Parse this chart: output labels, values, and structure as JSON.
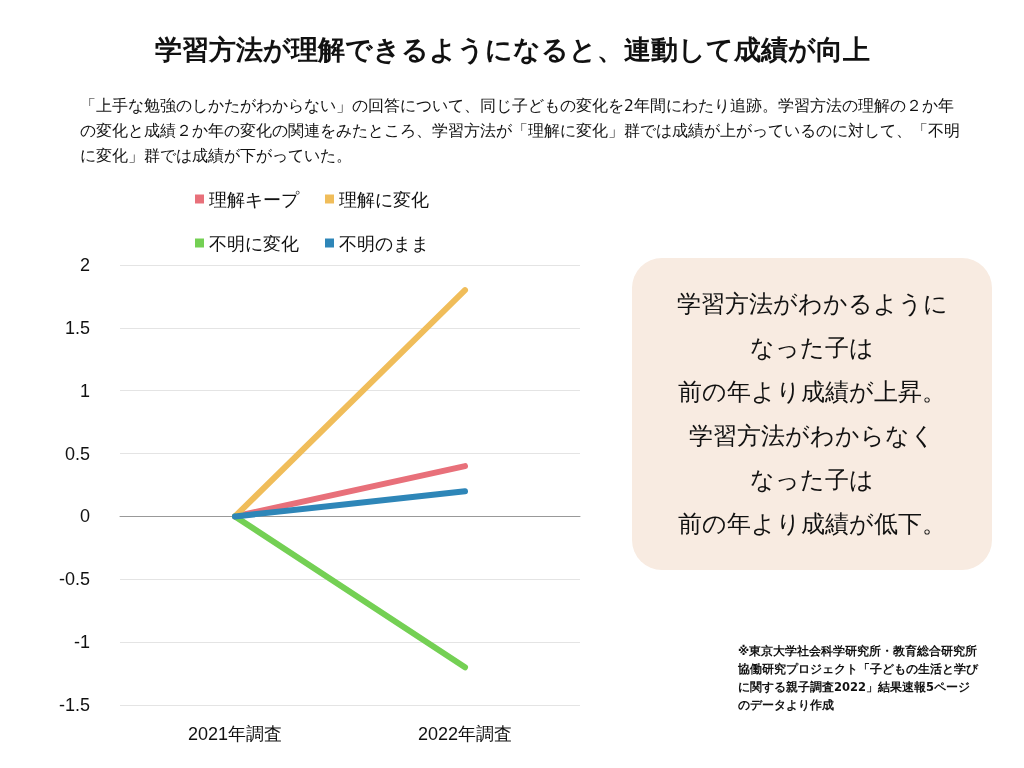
{
  "chart_data": {
    "type": "line",
    "title": "学習方法が理解できるようになると、連動して成績が向上",
    "subtitle": "「上手な勉強のしかたがわからない」の回答について、同じ子どもの変化を2年間にわたり追跡。学習方法の理解の２か年の変化と成績２か年の変化の関連をみたところ、学習方法が「理解に変化」群では成績が上がっているのに対して、「不明に変化」群では成績が下がっていた。",
    "categories": [
      "2021年調査",
      "2022年調査"
    ],
    "series": [
      {
        "name": "理解キープ",
        "color": "#e8707a",
        "values": [
          0,
          0.4
        ]
      },
      {
        "name": "理解に変化",
        "color": "#f0bd5a",
        "values": [
          0,
          1.8
        ]
      },
      {
        "name": "不明に変化",
        "color": "#74d054",
        "values": [
          0,
          -1.2
        ]
      },
      {
        "name": "不明のまま",
        "color": "#2e86b8",
        "values": [
          0,
          0.2
        ]
      }
    ],
    "ylim": [
      -1.5,
      2
    ],
    "yticks": [
      -1.5,
      -1,
      -0.5,
      0,
      0.5,
      1,
      1.5,
      2
    ],
    "grid": "y",
    "legend": "top left",
    "marker": "none",
    "line_style": "solid",
    "annotations": [
      "学習方法がわかるように",
      "なった子は",
      "前の年より成績が上昇。",
      "学習方法がわからなく",
      "なった子は",
      "前の年より成績が低下。",
      "※東京大学社会科学研究所・教育総合研究所協働研究プロジェクト「子どもの生活と学びに関する親子調査2022」結果速報5ページのデータより作成"
    ]
  }
}
